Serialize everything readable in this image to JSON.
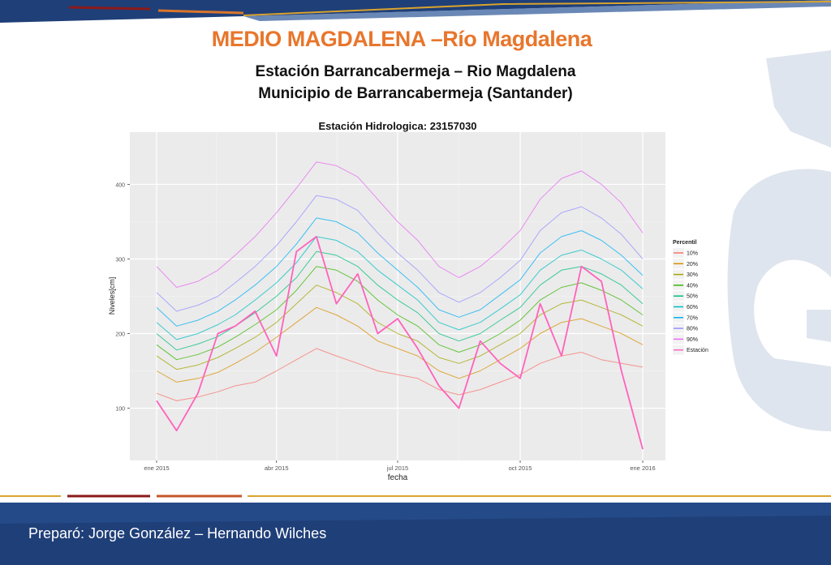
{
  "header": {
    "title": "MEDIO MAGDALENA –Río Magdalena",
    "subtitle_1": "Estación Barrancabermeja – Rio Magdalena",
    "subtitle_2": "Municipio de Barrancabermeja (Santander)"
  },
  "footer": {
    "credit": "Preparó: Jorge González – Hernando Wilches"
  },
  "colors": {
    "title": "#e8762c",
    "band_dark": "#1f3f78",
    "band_gold": "#d9a32e",
    "band_red": "#8b1a1a",
    "panel_bg": "#ebebeb"
  },
  "chart_data": {
    "type": "line",
    "title": "Estación Hidrologica: 23157030",
    "xlabel": "fecha",
    "ylabel": "Niveles[cm]",
    "x_range": [
      "2015-01-01",
      "2016-01-01"
    ],
    "ylim": [
      30,
      470
    ],
    "x_ticks": [
      {
        "date": "2015-01-01",
        "label": "ene 2015"
      },
      {
        "date": "2015-04-01",
        "label": "abr 2015"
      },
      {
        "date": "2015-07-01",
        "label": "jul 2015"
      },
      {
        "date": "2015-10-01",
        "label": "oct 2015"
      },
      {
        "date": "2016-01-01",
        "label": "ene 2016"
      }
    ],
    "y_ticks": [
      100,
      200,
      300,
      400
    ],
    "grid": true,
    "legend": {
      "title": "Percentil",
      "placement": "right"
    },
    "x_dates": [
      "2015-01-01",
      "2015-01-16",
      "2015-02-01",
      "2015-02-16",
      "2015-03-01",
      "2015-03-16",
      "2015-04-01",
      "2015-04-16",
      "2015-05-01",
      "2015-05-16",
      "2015-06-01",
      "2015-06-16",
      "2015-07-01",
      "2015-07-16",
      "2015-08-01",
      "2015-08-16",
      "2015-09-01",
      "2015-09-16",
      "2015-10-01",
      "2015-10-16",
      "2015-11-01",
      "2015-11-16",
      "2015-12-01",
      "2015-12-16",
      "2016-01-01"
    ],
    "series": [
      {
        "name": "10%",
        "color": "#f8766d",
        "values": [
          120,
          110,
          115,
          122,
          130,
          135,
          150,
          165,
          180,
          170,
          160,
          150,
          145,
          140,
          125,
          118,
          125,
          135,
          145,
          160,
          170,
          175,
          165,
          160,
          155
        ]
      },
      {
        "name": "20%",
        "color": "#d89000",
        "values": [
          150,
          135,
          140,
          148,
          160,
          175,
          195,
          215,
          235,
          225,
          210,
          190,
          180,
          170,
          150,
          140,
          150,
          165,
          180,
          200,
          215,
          220,
          210,
          200,
          185
        ]
      },
      {
        "name": "30%",
        "color": "#a3a500",
        "values": [
          170,
          152,
          158,
          168,
          180,
          195,
          215,
          240,
          265,
          255,
          240,
          215,
          200,
          190,
          168,
          160,
          170,
          185,
          200,
          225,
          240,
          245,
          235,
          225,
          210
        ]
      },
      {
        "name": "40%",
        "color": "#39b600",
        "values": [
          185,
          165,
          172,
          182,
          195,
          212,
          232,
          258,
          290,
          285,
          270,
          245,
          225,
          210,
          185,
          175,
          185,
          200,
          218,
          245,
          262,
          268,
          258,
          245,
          225
        ]
      },
      {
        "name": "50%",
        "color": "#00bf7d",
        "values": [
          200,
          178,
          186,
          196,
          210,
          228,
          250,
          275,
          310,
          305,
          290,
          265,
          245,
          228,
          200,
          190,
          200,
          218,
          235,
          265,
          285,
          290,
          280,
          265,
          240
        ]
      },
      {
        "name": "60%",
        "color": "#00bfc4",
        "values": [
          215,
          192,
          200,
          212,
          225,
          245,
          268,
          295,
          330,
          325,
          310,
          285,
          265,
          245,
          215,
          205,
          215,
          233,
          252,
          285,
          305,
          312,
          300,
          285,
          260
        ]
      },
      {
        "name": "70%",
        "color": "#00b0f6",
        "values": [
          235,
          210,
          218,
          230,
          245,
          265,
          290,
          320,
          355,
          350,
          335,
          308,
          285,
          262,
          232,
          222,
          232,
          252,
          272,
          308,
          330,
          338,
          325,
          305,
          278
        ]
      },
      {
        "name": "80%",
        "color": "#9590ff",
        "values": [
          255,
          230,
          238,
          250,
          268,
          290,
          318,
          350,
          385,
          380,
          365,
          335,
          308,
          285,
          255,
          242,
          255,
          275,
          298,
          338,
          362,
          370,
          355,
          333,
          300
        ]
      },
      {
        "name": "90%",
        "color": "#e76bf3",
        "values": [
          290,
          262,
          270,
          285,
          305,
          330,
          362,
          395,
          430,
          425,
          410,
          380,
          350,
          325,
          290,
          275,
          290,
          312,
          338,
          380,
          408,
          418,
          400,
          375,
          335
        ]
      },
      {
        "name": "Estación",
        "color": "#ff62bc",
        "values": [
          110,
          70,
          120,
          200,
          210,
          230,
          170,
          310,
          330,
          240,
          280,
          200,
          220,
          180,
          130,
          100,
          190,
          160,
          140,
          240,
          170,
          290,
          270,
          150,
          45
        ]
      }
    ]
  }
}
